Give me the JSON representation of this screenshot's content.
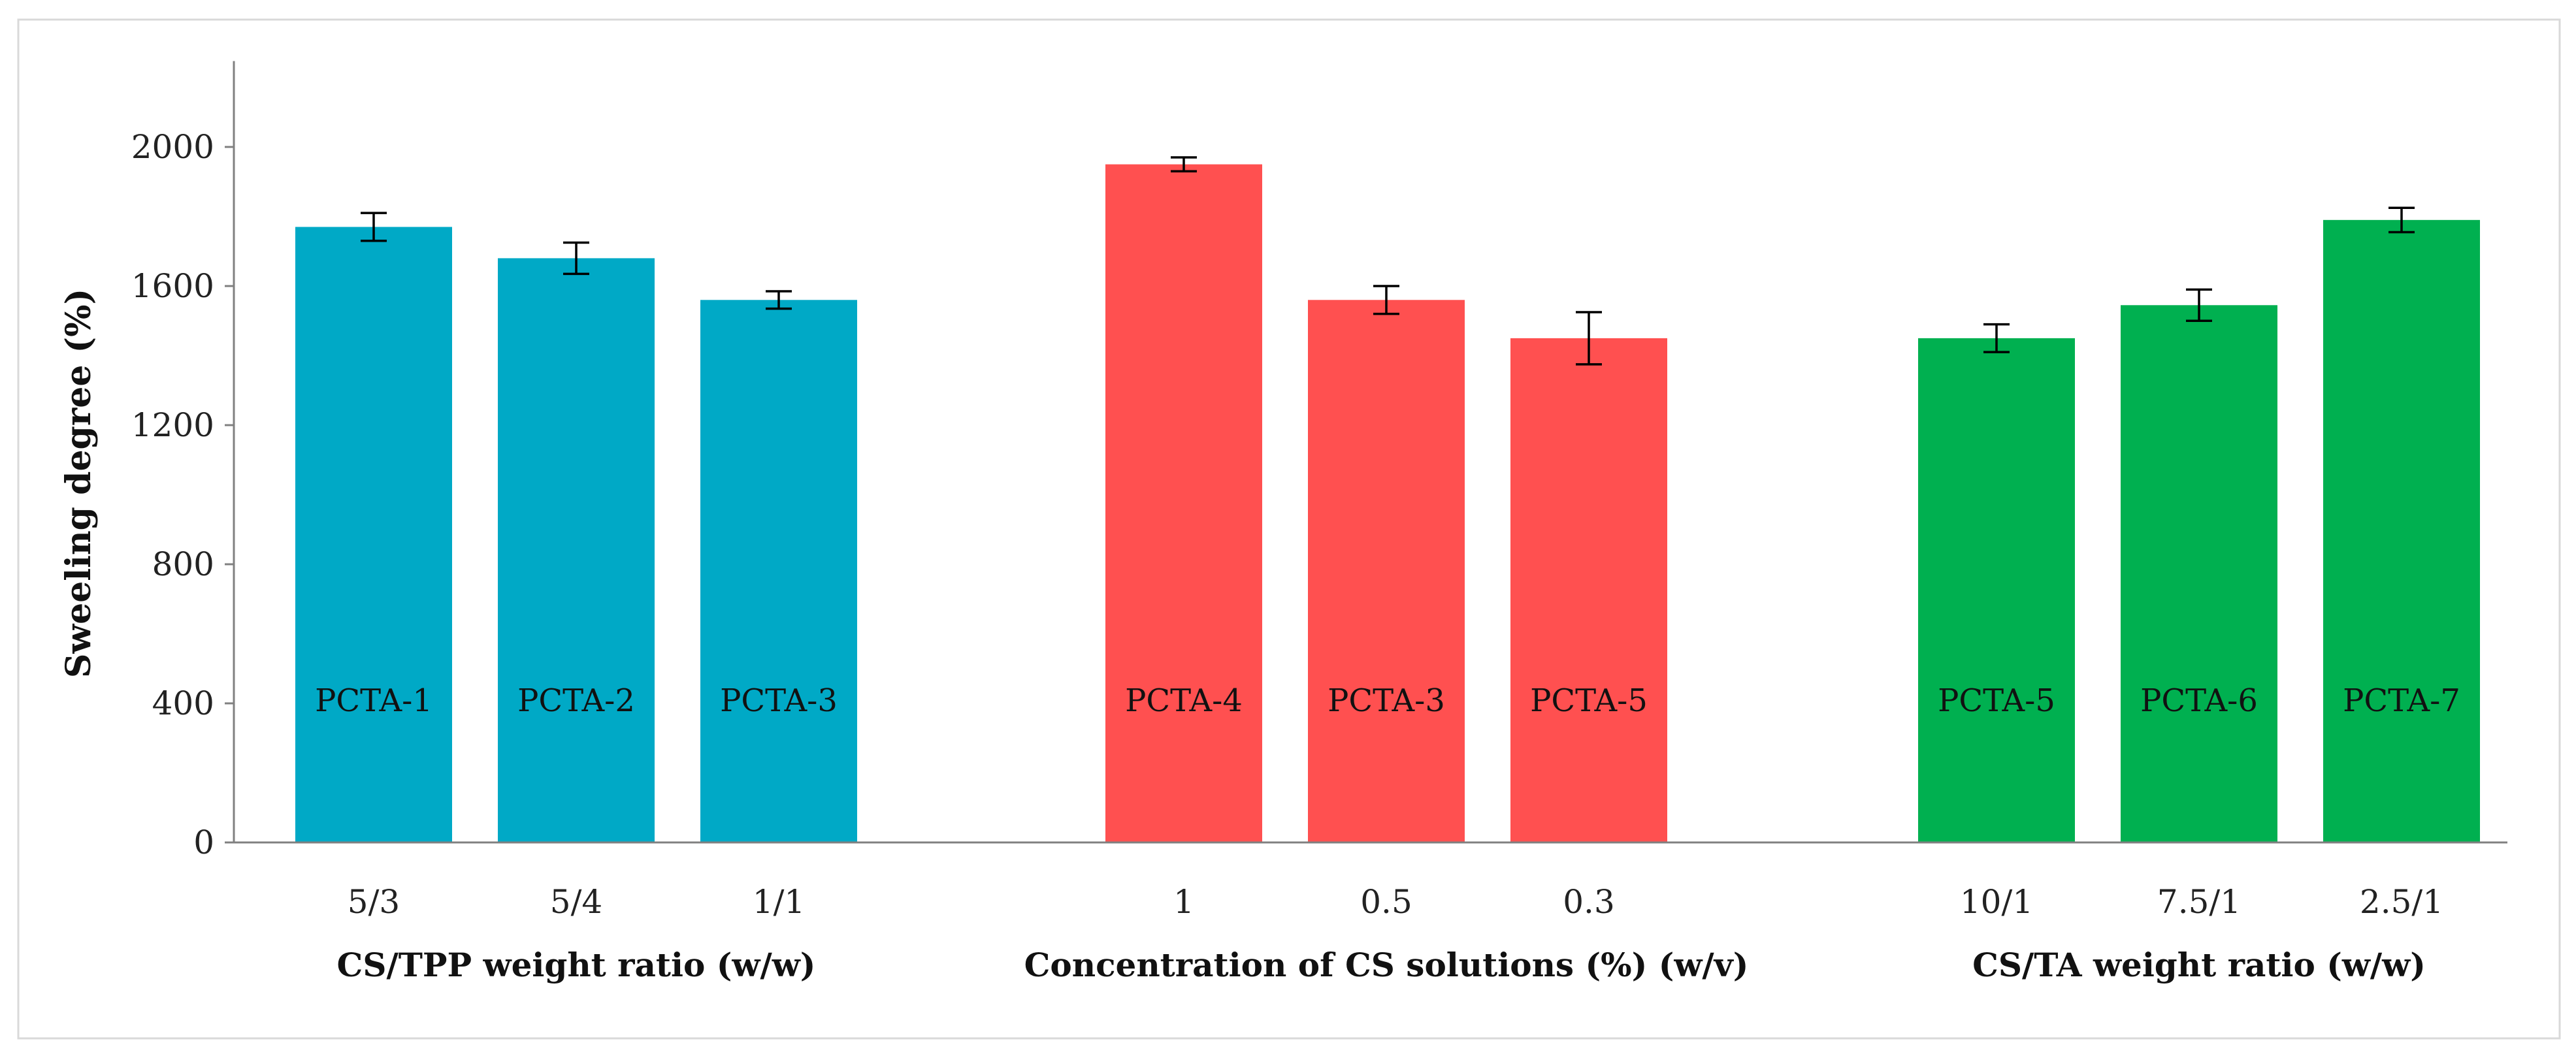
{
  "chart_data": {
    "type": "bar",
    "title": "",
    "ylabel": "Sweeling degree (%)",
    "ylim": [
      0,
      2200
    ],
    "yticks": [
      0,
      400,
      800,
      1200,
      1600,
      2000
    ],
    "grid": false,
    "groups": [
      {
        "xlabel": "CS/TPP weight ratio (w/w)",
        "color": "#00A9C6",
        "bars": [
          {
            "category": "5/3",
            "label": "PCTA-1",
            "value": 1770,
            "error": 40
          },
          {
            "category": "5/4",
            "label": "PCTA-2",
            "value": 1680,
            "error": 45
          },
          {
            "category": "1/1",
            "label": "PCTA-3",
            "value": 1560,
            "error": 25
          }
        ]
      },
      {
        "xlabel": "Concentration of CS solutions (%) (w/v)",
        "color": "#FF5050",
        "bars": [
          {
            "category": "1",
            "label": "PCTA-4",
            "value": 1950,
            "error": 20
          },
          {
            "category": "0.5",
            "label": "PCTA-3",
            "value": 1560,
            "error": 40
          },
          {
            "category": "0.3",
            "label": "PCTA-5",
            "value": 1450,
            "error": 75
          }
        ]
      },
      {
        "xlabel": "CS/TA weight ratio (w/w)",
        "color": "#00B050",
        "bars": [
          {
            "category": "10/1",
            "label": "PCTA-5",
            "value": 1450,
            "error": 40
          },
          {
            "category": "7.5/1",
            "label": "PCTA-6",
            "value": 1545,
            "error": 45
          },
          {
            "category": "2.5/1",
            "label": "PCTA-7",
            "value": 1790,
            "error": 35
          }
        ]
      }
    ]
  }
}
